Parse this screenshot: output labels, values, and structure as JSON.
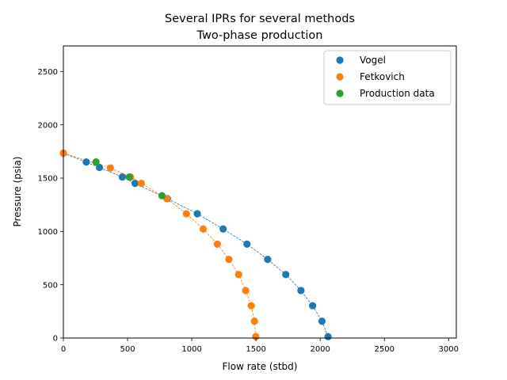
{
  "chart_data": {
    "type": "scatter",
    "title": "Several IPRs for several methods",
    "subtitle": "Two-phase production",
    "xlabel": "Flow rate (stbd)",
    "ylabel": "Pressure (psia)",
    "xlim": [
      0,
      3060
    ],
    "ylim": [
      0,
      2740
    ],
    "xticks": [
      0,
      500,
      1000,
      1500,
      2000,
      2500,
      3000
    ],
    "yticks": [
      0,
      500,
      1000,
      1500,
      2000,
      2500
    ],
    "grid": false,
    "legend_position": "top-right",
    "series": [
      {
        "name": "Vogel",
        "color": "#1f77b4",
        "connect": true,
        "points": [
          [
            0,
            1734
          ],
          [
            178,
            1651
          ],
          [
            281,
            1600
          ],
          [
            459,
            1510
          ],
          [
            558,
            1451
          ],
          [
            810,
            1308
          ],
          [
            1043,
            1166
          ],
          [
            1244,
            1023
          ],
          [
            1430,
            881
          ],
          [
            1591,
            738
          ],
          [
            1732,
            596
          ],
          [
            1850,
            446
          ],
          [
            1941,
            303
          ],
          [
            2014,
            158
          ],
          [
            2061,
            13
          ]
        ]
      },
      {
        "name": "Fetkovich",
        "color": "#ff7f0e",
        "connect": true,
        "points": [
          [
            0,
            1734
          ],
          [
            366,
            1596
          ],
          [
            523,
            1510
          ],
          [
            607,
            1451
          ],
          [
            805,
            1308
          ],
          [
            958,
            1166
          ],
          [
            1089,
            1023
          ],
          [
            1199,
            881
          ],
          [
            1289,
            738
          ],
          [
            1365,
            596
          ],
          [
            1420,
            446
          ],
          [
            1463,
            303
          ],
          [
            1488,
            158
          ],
          [
            1498,
            13
          ]
        ]
      },
      {
        "name": "Production data",
        "color": "#2ca02c",
        "connect": false,
        "points": [
          [
            254,
            1651
          ],
          [
            513,
            1510
          ],
          [
            768,
            1335
          ]
        ]
      }
    ]
  }
}
